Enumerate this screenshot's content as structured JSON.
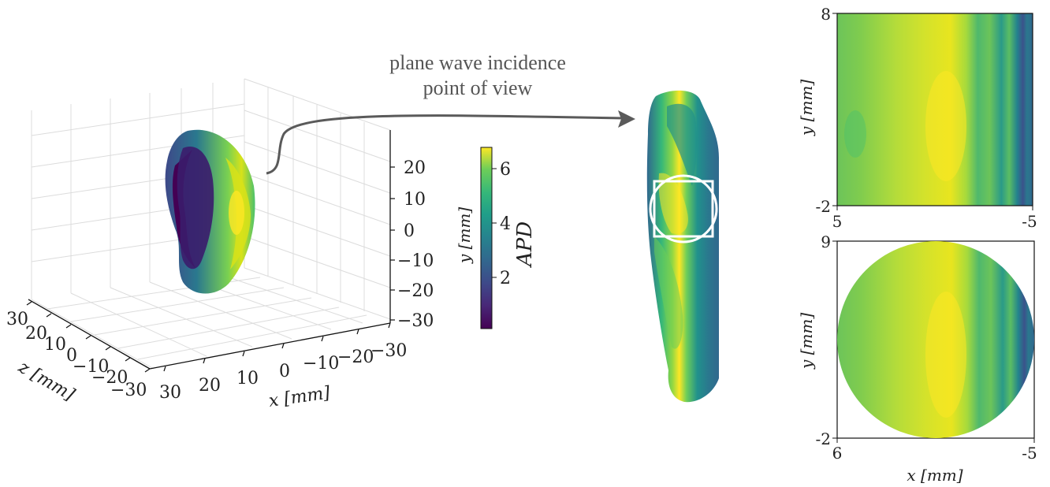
{
  "annotation": {
    "line1": "plane wave incidence",
    "line2": "point of view"
  },
  "colors": {
    "arrow": "#5a5a5a",
    "viridis_low": "#440154",
    "viridis_mid": "#21918c",
    "viridis_high": "#fde725",
    "overlay": "#ffffff"
  },
  "plot3d": {
    "z_axis_label": "z [mm]",
    "x_axis_label": "x [mm]",
    "z_ticks": [
      "30",
      "20",
      "10",
      "0",
      "−10",
      "−20",
      "−30"
    ],
    "x_ticks": [
      "30",
      "20",
      "10",
      "0",
      "−10",
      "−20",
      "−30"
    ],
    "y_ticks": [
      "20",
      "10",
      "0",
      "−10",
      "−20",
      "−30"
    ]
  },
  "colorbar": {
    "label": "APD",
    "side_label": "y [mm]",
    "ticks": [
      "6",
      "4",
      "2"
    ]
  },
  "top_map": {
    "y_label": "y [mm]",
    "y_top": "8",
    "y_bottom": "-2",
    "x_left": "5",
    "x_right": "-5"
  },
  "bottom_map": {
    "y_label": "y [mm]",
    "y_top": "9",
    "y_bottom": "-2",
    "x_left": "6",
    "x_right": "-5",
    "x_label": "x [mm]"
  }
}
